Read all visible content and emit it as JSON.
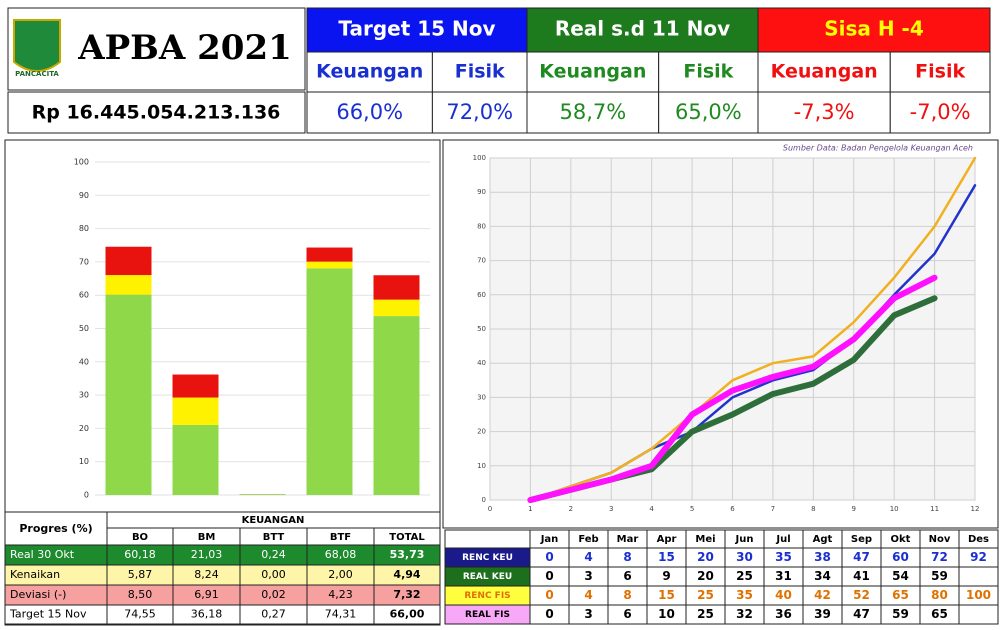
{
  "header": {
    "logo_text": "PANCACITA",
    "title": "APBA 2021",
    "amount": "Rp 16.445.054.213.136",
    "groups": [
      {
        "title": "Target 15 Nov",
        "bg": "#0a14f0",
        "fg": "#ffffff",
        "value_color": "#1a2fd0",
        "items": [
          {
            "label": "Keuangan",
            "value": "66,0%"
          },
          {
            "label": "Fisik",
            "value": "72,0%"
          }
        ]
      },
      {
        "title": "Real s.d 11 Nov",
        "bg": "#1d7a1d",
        "fg": "#ffffff",
        "value_color": "#1f8a1f",
        "items": [
          {
            "label": "Keuangan",
            "value": "58,7%"
          },
          {
            "label": "Fisik",
            "value": "65,0%"
          }
        ]
      },
      {
        "title": "Sisa H -4",
        "bg": "#ff1010",
        "fg": "#ffff00",
        "value_color": "#f01010",
        "items": [
          {
            "label": "Keuangan",
            "value": "-7,3%"
          },
          {
            "label": "Fisik",
            "value": "-7,0%"
          }
        ]
      }
    ]
  },
  "chart_data": [
    {
      "type": "stacked_bar",
      "categories": [
        "BO",
        "BM",
        "BTT",
        "BTF",
        "TOTAL"
      ],
      "ylim": [
        0,
        100
      ],
      "yticks": [
        0,
        10,
        20,
        30,
        40,
        50,
        60,
        70,
        80,
        90,
        100
      ],
      "grid": true,
      "series": [
        {
          "name": "Real 30 Okt",
          "color": "#8fd84a",
          "row_bg": "#1e8a2e",
          "row_fg": "#ffffff",
          "values": [
            60.18,
            21.03,
            0.24,
            68.08,
            53.73
          ],
          "value_labels": [
            "60,18",
            "21,03",
            "0,24",
            "68,08",
            "53,73"
          ]
        },
        {
          "name": "Kenaikan",
          "color": "#fff200",
          "row_bg": "#fff5a8",
          "row_fg": "#000000",
          "values": [
            5.87,
            8.24,
            0.0,
            2.0,
            4.94
          ],
          "value_labels": [
            "5,87",
            "8,24",
            "0,00",
            "2,00",
            "4,94"
          ]
        },
        {
          "name": "Deviasi (-)",
          "color": "#e8120e",
          "row_bg": "#f7a0a0",
          "row_fg": "#000000",
          "values": [
            8.5,
            6.91,
            0.02,
            4.23,
            7.32
          ],
          "value_labels": [
            "8,50",
            "6,91",
            "0,02",
            "4,23",
            "7,32"
          ]
        }
      ]
    },
    {
      "type": "line",
      "annotation": "Sumber Data: Badan Pengelola Keuangan Aceh",
      "x": [
        1,
        2,
        3,
        4,
        5,
        6,
        7,
        8,
        9,
        10,
        11,
        12
      ],
      "xlim": [
        0,
        12
      ],
      "xticks": [
        0,
        1,
        2,
        3,
        4,
        5,
        6,
        7,
        8,
        9,
        10,
        11,
        12
      ],
      "ylim": [
        0,
        100
      ],
      "yticks": [
        0,
        10,
        20,
        30,
        40,
        50,
        60,
        70,
        80,
        90,
        100
      ],
      "grid": true,
      "series": [
        {
          "name": "RENC KEU",
          "color": "#2233cc",
          "width": 2.5,
          "label_bg": "#1a1a8a",
          "label_fg": "#ffffff",
          "text_color": "#1a2fd0",
          "values": [
            0,
            4,
            8,
            15,
            20,
            30,
            35,
            38,
            47,
            60,
            72,
            92
          ]
        },
        {
          "name": "REAL KEU",
          "color": "#2e6e3a",
          "width": 6,
          "label_bg": "#1d6e1d",
          "label_fg": "#ffffff",
          "text_color": "#000000",
          "values": [
            0,
            3,
            6,
            9,
            20,
            25,
            31,
            34,
            41,
            54,
            59,
            null
          ]
        },
        {
          "name": "RENC FIS",
          "color": "#f0b020",
          "width": 2.5,
          "label_bg": "#ffff40",
          "label_fg": "#e07000",
          "text_color": "#e07000",
          "values": [
            0,
            4,
            8,
            15,
            25,
            35,
            40,
            42,
            52,
            65,
            80,
            100
          ]
        },
        {
          "name": "REAL FIS",
          "color": "#ff10ff",
          "width": 6,
          "label_bg": "#f7a8f7",
          "label_fg": "#000000",
          "text_color": "#000000",
          "values": [
            0,
            3,
            6,
            10,
            25,
            32,
            36,
            39,
            47,
            59,
            65,
            null
          ]
        }
      ]
    }
  ],
  "tables": {
    "keuangan": {
      "title": "Progres (%)",
      "group": "KEUANGAN",
      "target": {
        "name": "Target 15 Nov",
        "cells": [
          "74,55",
          "36,18",
          "0,27",
          "74,31",
          "66,00"
        ]
      }
    },
    "progress": {
      "months": [
        "Jan",
        "Feb",
        "Mar",
        "Apr",
        "Mei",
        "Jun",
        "Jul",
        "Agt",
        "Sep",
        "Okt",
        "Nov",
        "Des"
      ]
    }
  }
}
